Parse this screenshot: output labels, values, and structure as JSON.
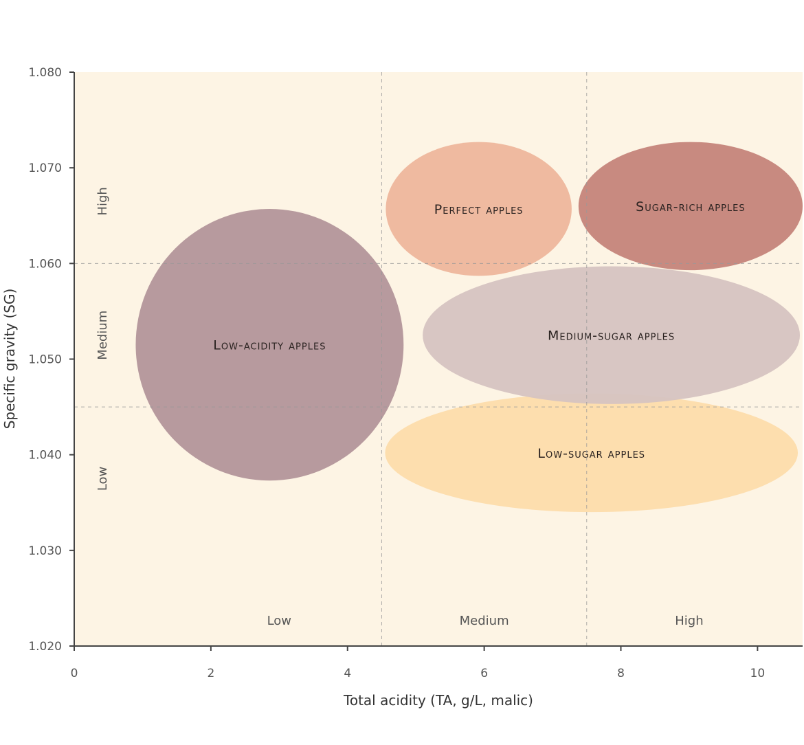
{
  "chart_data": {
    "type": "bubble-regions",
    "title": "",
    "xlabel": "Total acidity (TA, g/L, malic)",
    "ylabel": "Specific gravity (SG)",
    "xlim": [
      0,
      10.66
    ],
    "ylim": [
      1.02,
      1.08
    ],
    "x_ticks": [
      0,
      2,
      4,
      6,
      8,
      10
    ],
    "x_tick_labels": [
      "0",
      "2",
      "4",
      "6",
      "8",
      "10"
    ],
    "y_ticks": [
      1.02,
      1.03,
      1.04,
      1.05,
      1.06,
      1.07,
      1.08
    ],
    "y_tick_labels": [
      "1.020",
      "1.030",
      "1.040",
      "1.050",
      "1.060",
      "1.070",
      "1.080"
    ],
    "x_thresholds": [
      4.5,
      7.5
    ],
    "y_thresholds": [
      1.045,
      1.06
    ],
    "x_bands": [
      {
        "label": "Low",
        "center": 3.0
      },
      {
        "label": "Medium",
        "center": 6.0
      },
      {
        "label": "High",
        "center": 9.0
      }
    ],
    "y_bands": [
      {
        "label": "High",
        "center": 1.0665
      },
      {
        "label": "Medium",
        "center": 1.0525
      },
      {
        "label": "Low",
        "center": 1.0375
      }
    ],
    "background": "#fdf4e4",
    "regions": [
      {
        "label": "Low-sugar apples",
        "cx": 7.57,
        "cy": 1.0402,
        "rx": 3.02,
        "ry": 0.0062,
        "color": "#fddcab"
      },
      {
        "label": "Medium-sugar apples",
        "cx": 7.86,
        "cy": 1.0525,
        "rx": 2.76,
        "ry": 0.0072,
        "color": "#d6c3c1"
      },
      {
        "label": "Perfect apples",
        "cx": 5.92,
        "cy": 1.0657,
        "rx": 1.36,
        "ry": 0.007,
        "color": "#eeb69c"
      },
      {
        "label": "Sugar-rich apples",
        "cx": 9.02,
        "cy": 1.066,
        "rx": 1.64,
        "ry": 0.0067,
        "color": "#c5847a"
      },
      {
        "label": "Low-acidity apples",
        "cx": 2.86,
        "cy": 1.0515,
        "rx": 1.96,
        "ry": 0.0142,
        "color": "#b3959a"
      }
    ],
    "grid": false
  }
}
